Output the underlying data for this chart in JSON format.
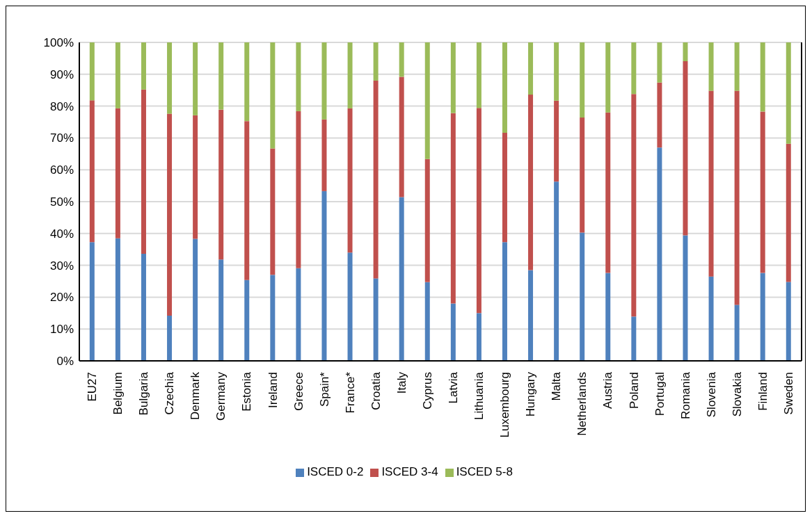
{
  "chart_data": {
    "type": "bar",
    "stacked": true,
    "categories": [
      "EU27",
      "Belgium",
      "Bulgaria",
      "Czechia",
      "Denmark",
      "Germany",
      "Estonia",
      "Ireland",
      "Greece",
      "Spain*",
      "France*",
      "Croatia",
      "Italy",
      "Cyprus",
      "Latvia",
      "Lithuania",
      "Luxembourg",
      "Hungary",
      "Malta",
      "Netherlands",
      "Austria",
      "Poland",
      "Portugal",
      "Romania",
      "Slovenia",
      "Slovakia",
      "Finland",
      "Sweden"
    ],
    "series": [
      {
        "name": "ISCED 0-2",
        "color": "#4f81bd",
        "values": [
          37.3,
          38.5,
          33.6,
          14.2,
          38.3,
          31.8,
          25.4,
          27.0,
          29.1,
          53.3,
          34.0,
          25.9,
          51.4,
          24.7,
          18.0,
          15.0,
          37.3,
          28.5,
          56.3,
          40.3,
          27.6,
          13.9,
          67.0,
          39.4,
          26.5,
          17.6,
          27.6,
          24.8
        ]
      },
      {
        "name": "ISCED 3-4",
        "color": "#c0504d",
        "values": [
          44.5,
          40.8,
          51.6,
          63.4,
          38.8,
          47.1,
          49.9,
          39.7,
          49.3,
          22.5,
          45.3,
          62.1,
          37.8,
          38.7,
          59.8,
          64.4,
          34.3,
          55.1,
          25.4,
          36.1,
          50.4,
          69.9,
          20.4,
          54.7,
          58.3,
          67.2,
          50.7,
          43.4
        ]
      },
      {
        "name": "ISCED 5-8",
        "color": "#9bbb59",
        "values": [
          18.2,
          20.7,
          14.8,
          22.4,
          22.9,
          21.1,
          24.7,
          33.3,
          21.6,
          24.2,
          20.7,
          12.0,
          10.8,
          36.6,
          22.2,
          20.6,
          28.4,
          16.4,
          18.3,
          23.6,
          22.0,
          16.2,
          12.6,
          5.9,
          15.2,
          15.2,
          21.7,
          31.8
        ]
      }
    ],
    "ylim": [
      0,
      100
    ],
    "yticks": [
      {
        "value": 0,
        "label": "0%"
      },
      {
        "value": 10,
        "label": "10%"
      },
      {
        "value": 20,
        "label": "20%"
      },
      {
        "value": 30,
        "label": "30%"
      },
      {
        "value": 40,
        "label": "40%"
      },
      {
        "value": 50,
        "label": "50%"
      },
      {
        "value": 60,
        "label": "60%"
      },
      {
        "value": 70,
        "label": "70%"
      },
      {
        "value": 80,
        "label": "80%"
      },
      {
        "value": 90,
        "label": "90%"
      },
      {
        "value": 100,
        "label": "100%"
      }
    ],
    "grid": "y",
    "legend": "bottom"
  }
}
